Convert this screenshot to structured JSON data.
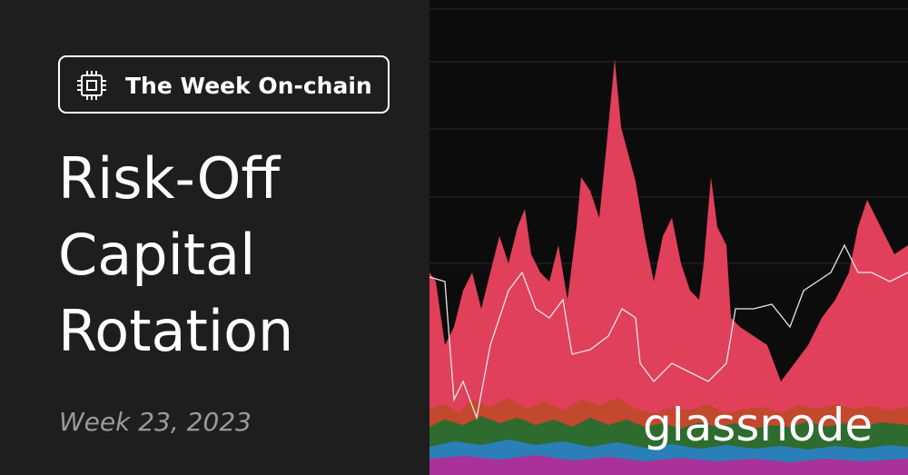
{
  "badge": {
    "text": "The Week On-chain"
  },
  "title": {
    "lines": [
      "Risk-Off",
      "Capital",
      "Rotation"
    ]
  },
  "subtitle": "Week 23, 2023",
  "brand": "glassnode"
}
